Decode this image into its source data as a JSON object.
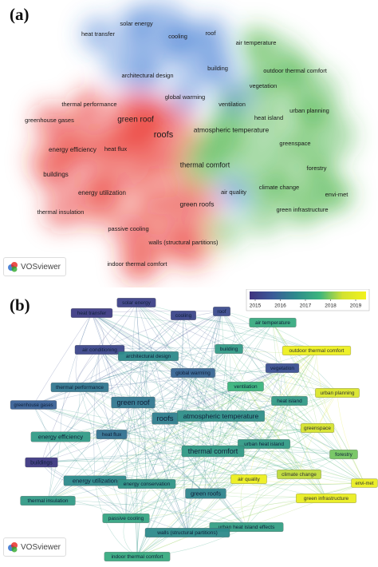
{
  "panel_a": {
    "label": "(a)",
    "vosviewer_label": "VOSviewer",
    "terms": [
      {
        "text": "solar energy",
        "cluster": "blue"
      },
      {
        "text": "heat transfer",
        "cluster": "blue"
      },
      {
        "text": "cooling",
        "cluster": "blue"
      },
      {
        "text": "roof",
        "cluster": "blue"
      },
      {
        "text": "air temperature",
        "cluster": "green"
      },
      {
        "text": "building",
        "cluster": "blue"
      },
      {
        "text": "outdoor thermal comfort",
        "cluster": "green"
      },
      {
        "text": "architectural design",
        "cluster": "blue"
      },
      {
        "text": "vegetation",
        "cluster": "green"
      },
      {
        "text": "global warming",
        "cluster": "blue"
      },
      {
        "text": "thermal performance",
        "cluster": "red"
      },
      {
        "text": "ventilation",
        "cluster": "green"
      },
      {
        "text": "urban planning",
        "cluster": "green"
      },
      {
        "text": "green roof",
        "cluster": "red"
      },
      {
        "text": "greenhouse gases",
        "cluster": "red"
      },
      {
        "text": "heat island",
        "cluster": "green"
      },
      {
        "text": "roofs",
        "cluster": "red"
      },
      {
        "text": "atmospheric temperature",
        "cluster": "green"
      },
      {
        "text": "energy efficiency",
        "cluster": "red"
      },
      {
        "text": "heat flux",
        "cluster": "red"
      },
      {
        "text": "greenspace",
        "cluster": "green"
      },
      {
        "text": "thermal comfort",
        "cluster": "green"
      },
      {
        "text": "buildings",
        "cluster": "red"
      },
      {
        "text": "forestry",
        "cluster": "green"
      },
      {
        "text": "energy utilization",
        "cluster": "red"
      },
      {
        "text": "air quality",
        "cluster": "blue"
      },
      {
        "text": "climate change",
        "cluster": "green"
      },
      {
        "text": "envi-met",
        "cluster": "green"
      },
      {
        "text": "green roofs",
        "cluster": "red"
      },
      {
        "text": "green infrastructure",
        "cluster": "green"
      },
      {
        "text": "thermal insulation",
        "cluster": "red"
      },
      {
        "text": "passive cooling",
        "cluster": "red"
      },
      {
        "text": "walls (structural partitions)",
        "cluster": "red"
      },
      {
        "text": "indoor thermal comfort",
        "cluster": "red"
      }
    ],
    "cluster_colors": {
      "red": "#e8221c",
      "green": "#2fa82a",
      "blue": "#2f6fd0"
    }
  },
  "panel_b": {
    "label": "(b)",
    "vosviewer_label": "VOSviewer",
    "legend": {
      "years": [
        "2015",
        "2016",
        "2017",
        "2018",
        "2019"
      ],
      "colors": [
        "#40337f",
        "#3b5b98",
        "#2e8b8c",
        "#3bb57e",
        "#d3e231",
        "#f2f21c"
      ]
    },
    "terms": [
      {
        "text": "heat transfer",
        "year": 2015.2
      },
      {
        "text": "solar energy",
        "year": 2015.3
      },
      {
        "text": "cooling",
        "year": 2015.4
      },
      {
        "text": "roof",
        "year": 2015.5
      },
      {
        "text": "air temperature",
        "year": 2017.2
      },
      {
        "text": "air conditioning",
        "year": 2015.4
      },
      {
        "text": "architectural design",
        "year": 2016.6
      },
      {
        "text": "building",
        "year": 2016.9
      },
      {
        "text": "outdoor thermal comfort",
        "year": 2018.9
      },
      {
        "text": "vegetation",
        "year": 2015.6
      },
      {
        "text": "global warming",
        "year": 2016.0
      },
      {
        "text": "thermal performance",
        "year": 2016.3
      },
      {
        "text": "ventilation",
        "year": 2017.4
      },
      {
        "text": "urban planning",
        "year": 2018.4
      },
      {
        "text": "greenhouse gases",
        "year": 2015.9
      },
      {
        "text": "green roof",
        "year": 2016.3
      },
      {
        "text": "heat island",
        "year": 2016.9
      },
      {
        "text": "roofs",
        "year": 2016.4
      },
      {
        "text": "atmospheric temperature",
        "year": 2016.7
      },
      {
        "text": "greenspace",
        "year": 2018.3
      },
      {
        "text": "energy efficiency",
        "year": 2016.9
      },
      {
        "text": "heat flux",
        "year": 2016.2
      },
      {
        "text": "urban heat island",
        "year": 2016.9
      },
      {
        "text": "thermal comfort",
        "year": 2016.9
      },
      {
        "text": "buildings",
        "year": 2015.1
      },
      {
        "text": "forestry",
        "year": 2017.7
      },
      {
        "text": "climate change",
        "year": 2018.1
      },
      {
        "text": "energy utilization",
        "year": 2016.6
      },
      {
        "text": "air quality",
        "year": 2018.9
      },
      {
        "text": "energy conservation",
        "year": 2016.8
      },
      {
        "text": "envi-met",
        "year": 2018.8
      },
      {
        "text": "green roofs",
        "year": 2016.5
      },
      {
        "text": "green infrastructure",
        "year": 2018.8
      },
      {
        "text": "thermal insulation",
        "year": 2016.9
      },
      {
        "text": "passive cooling",
        "year": 2017.1
      },
      {
        "text": "urban heat island effects",
        "year": 2017.0
      },
      {
        "text": "walls (structural partitions)",
        "year": 2016.6
      },
      {
        "text": "indoor thermal comfort",
        "year": 2017.2
      }
    ]
  }
}
